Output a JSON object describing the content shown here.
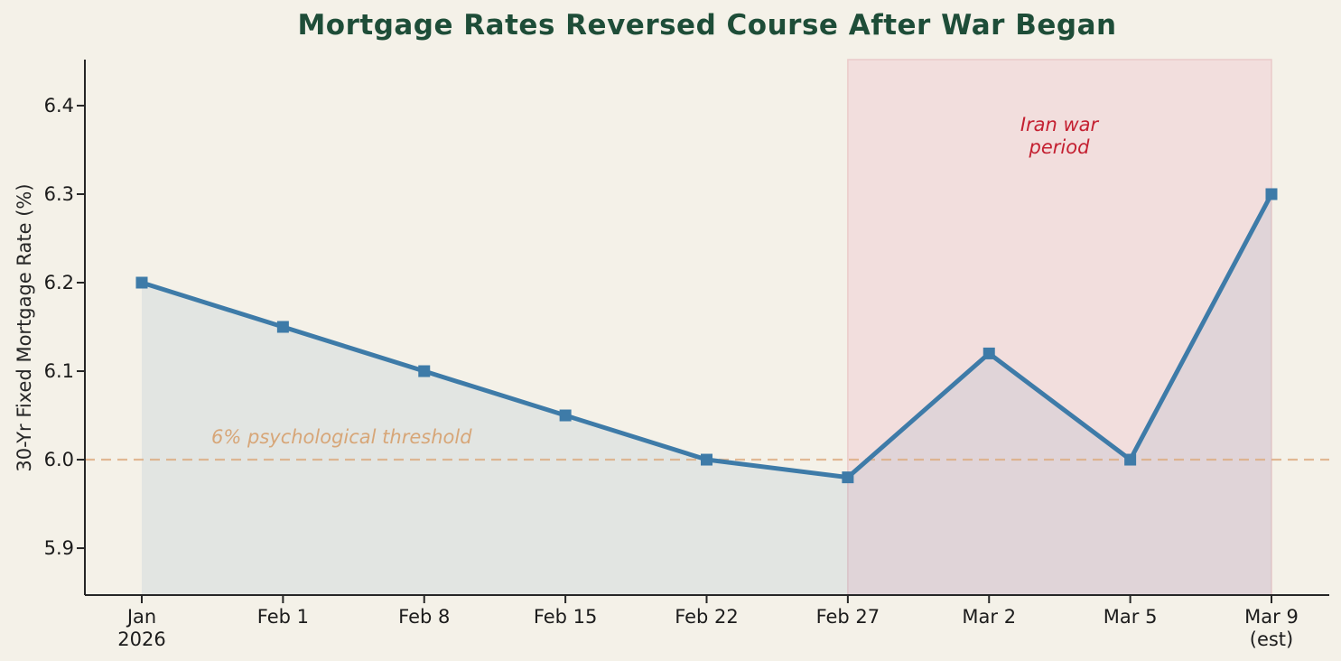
{
  "title": "Mortgage Rates Reversed Course After War Began",
  "colors": {
    "background": "#f4f1e8",
    "title_text": "#1e4d38",
    "line": "#3e7ba8",
    "area_fill": "rgba(70,130,180,0.10)",
    "war_region_fill": "#f2dedd",
    "war_region_border": "#eacac9",
    "war_label_text": "#c42031",
    "threshold_text": "#d7a678",
    "threshold_line": "#ddab7f",
    "axis_spine": "#262626",
    "tick_text": "#1c1c1c"
  },
  "chart_data": {
    "type": "line",
    "title": "Mortgage Rates Reversed Course After War Began",
    "xlabel": "",
    "ylabel": "30-Yr Fixed Mortgage Rate (%)",
    "categories": [
      "Jan\n2026",
      "Feb 1",
      "Feb 8",
      "Feb 15",
      "Feb 22",
      "Feb 27",
      "Mar 2",
      "Mar 5",
      "Mar 9\n(est)"
    ],
    "values": [
      6.2,
      6.15,
      6.1,
      6.05,
      6.0,
      5.98,
      6.12,
      6.0,
      6.3
    ],
    "yticks": [
      5.9,
      6.0,
      6.1,
      6.2,
      6.3,
      6.4
    ],
    "ylim": [
      5.847,
      6.452
    ],
    "grid": false,
    "legend": false,
    "marker": "square",
    "area_under_line": true,
    "threshold": {
      "value": 6.0,
      "label": "6% psychological threshold",
      "style": "dashed"
    },
    "war_period": {
      "from_index": 5,
      "to_index": 8,
      "from_category": "Feb 27",
      "to_category": "Mar 9\n(est)",
      "label": "Iran war\nperiod"
    }
  }
}
